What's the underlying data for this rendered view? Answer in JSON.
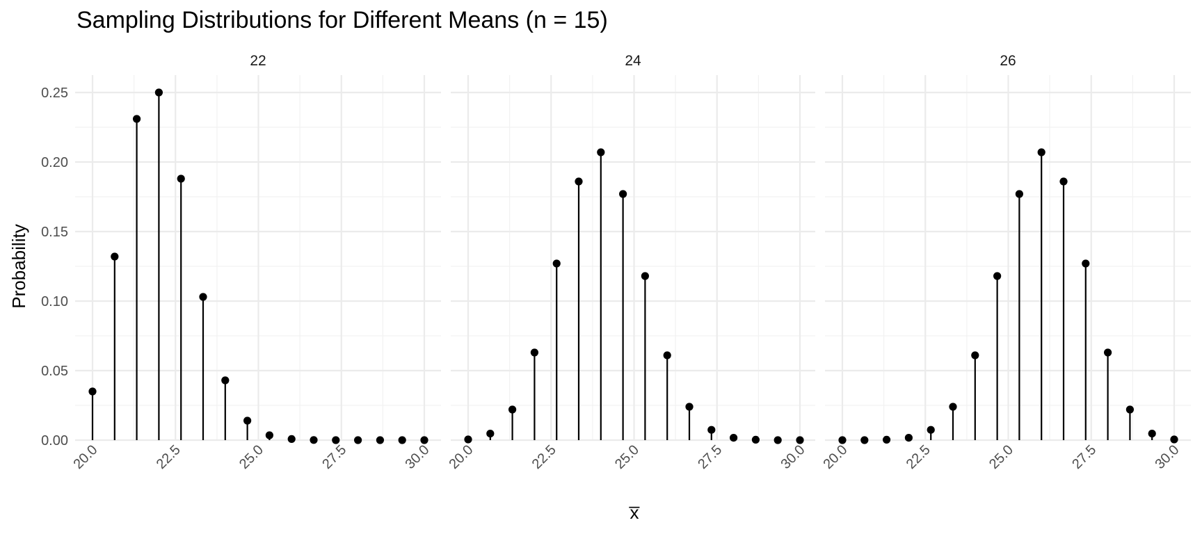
{
  "chart_data": {
    "type": "lollipop",
    "title": "Sampling Distributions for Different Means (n = 15)",
    "xlabel": "x̅",
    "ylabel": "Probability",
    "xlim": [
      20,
      30
    ],
    "ylim": [
      0,
      0.25
    ],
    "x_ticks": [
      "20.0",
      "22.5",
      "25.0",
      "27.5",
      "30.0"
    ],
    "y_ticks": [
      "0.00",
      "0.05",
      "0.10",
      "0.15",
      "0.20",
      "0.25"
    ],
    "grid": true,
    "x": [
      20.0,
      20.667,
      21.333,
      22.0,
      22.667,
      23.333,
      24.0,
      24.667,
      25.333,
      26.0,
      26.667,
      27.333,
      28.0,
      28.667,
      29.333,
      30.0
    ],
    "panels": [
      {
        "label": "22",
        "values": [
          0.035,
          0.132,
          0.231,
          0.25,
          0.188,
          0.103,
          0.043,
          0.014,
          0.0035,
          0.0008,
          0.0001,
          0.0,
          0.0,
          0.0,
          0.0,
          0.0
        ]
      },
      {
        "label": "24",
        "values": [
          0.0005,
          0.0047,
          0.022,
          0.063,
          0.127,
          0.186,
          0.207,
          0.177,
          0.118,
          0.061,
          0.024,
          0.0074,
          0.0017,
          0.0003,
          0.0,
          0.0
        ]
      },
      {
        "label": "26",
        "values": [
          0.0,
          0.0,
          0.0003,
          0.0017,
          0.0074,
          0.024,
          0.061,
          0.118,
          0.177,
          0.207,
          0.186,
          0.127,
          0.063,
          0.022,
          0.0047,
          0.0005
        ]
      }
    ]
  }
}
